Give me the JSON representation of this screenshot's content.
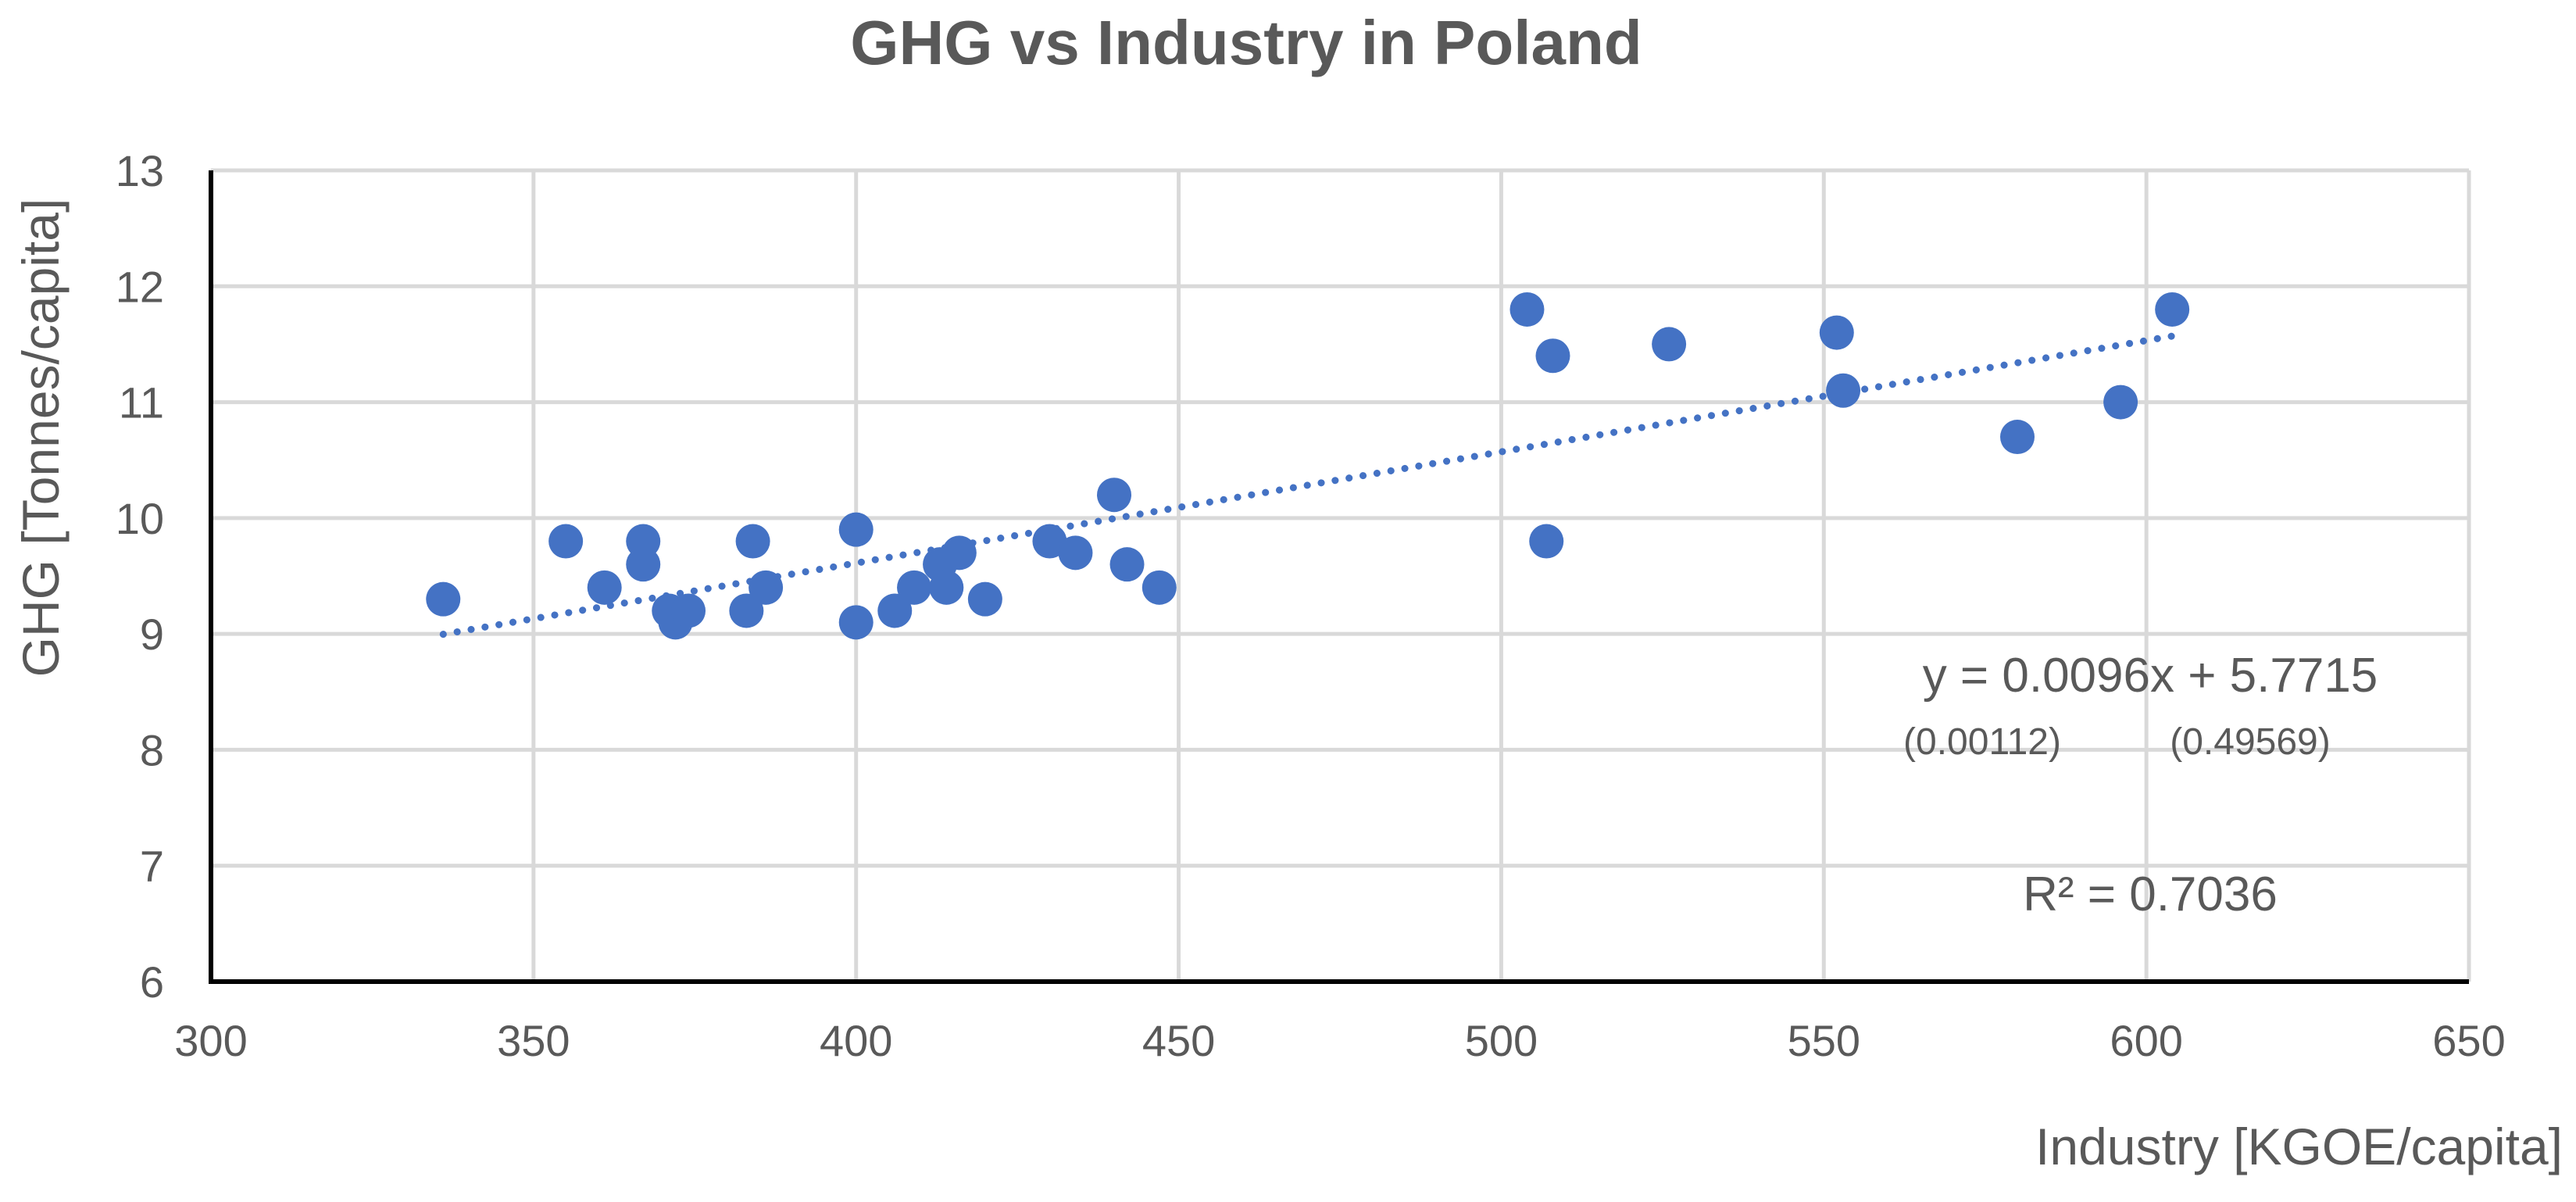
{
  "chart_data": {
    "type": "scatter",
    "title": "GHG vs Industry in Poland",
    "xlabel": "Industry [KGOE/capita]",
    "ylabel": "GHG [Tonnes/capita]",
    "xlim": [
      300,
      650
    ],
    "ylim": [
      6,
      13
    ],
    "xticks": [
      300,
      350,
      400,
      450,
      500,
      550,
      600,
      650
    ],
    "yticks": [
      6,
      7,
      8,
      9,
      10,
      11,
      12,
      13
    ],
    "grid": true,
    "legend": "none",
    "colors": {
      "points": "#4472C4",
      "trendline": "#4472C4",
      "grid": "#d9d9d9",
      "axis": "#000000",
      "text": "#595959"
    },
    "points": [
      {
        "x": 336,
        "y": 9.3
      },
      {
        "x": 355,
        "y": 9.8
      },
      {
        "x": 361,
        "y": 9.4
      },
      {
        "x": 367,
        "y": 9.8
      },
      {
        "x": 367,
        "y": 9.6
      },
      {
        "x": 371,
        "y": 9.2
      },
      {
        "x": 372,
        "y": 9.1
      },
      {
        "x": 374,
        "y": 9.2
      },
      {
        "x": 383,
        "y": 9.2
      },
      {
        "x": 384,
        "y": 9.8
      },
      {
        "x": 386,
        "y": 9.4
      },
      {
        "x": 400,
        "y": 9.9
      },
      {
        "x": 400,
        "y": 9.1
      },
      {
        "x": 406,
        "y": 9.2
      },
      {
        "x": 409,
        "y": 9.4
      },
      {
        "x": 413,
        "y": 9.6
      },
      {
        "x": 414,
        "y": 9.4
      },
      {
        "x": 416,
        "y": 9.7
      },
      {
        "x": 420,
        "y": 9.3
      },
      {
        "x": 430,
        "y": 9.8
      },
      {
        "x": 434,
        "y": 9.7
      },
      {
        "x": 440,
        "y": 10.2
      },
      {
        "x": 442,
        "y": 9.6
      },
      {
        "x": 447,
        "y": 9.4
      },
      {
        "x": 504,
        "y": 11.8
      },
      {
        "x": 507,
        "y": 9.8
      },
      {
        "x": 508,
        "y": 11.4
      },
      {
        "x": 526,
        "y": 11.5
      },
      {
        "x": 552,
        "y": 11.6
      },
      {
        "x": 553,
        "y": 11.1
      },
      {
        "x": 580,
        "y": 10.7
      },
      {
        "x": 596,
        "y": 11.0
      },
      {
        "x": 604,
        "y": 11.8
      }
    ],
    "trendline": {
      "type": "linear",
      "slope": 0.0096,
      "intercept": 5.7715,
      "x_range": [
        336,
        604
      ]
    },
    "annotations": {
      "equation": "y = 0.0096x + 5.7715",
      "std_errors": [
        "(0.00112)",
        "(0.49569)"
      ],
      "r_squared": "R² = 0.7036"
    }
  }
}
